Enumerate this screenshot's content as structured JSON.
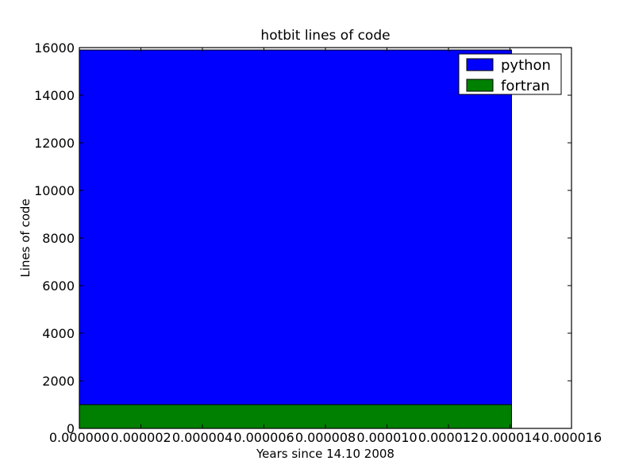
{
  "chart_data": {
    "type": "area",
    "title": "hotbit lines of code",
    "xlabel": "Years since 14.10 2008",
    "ylabel": "Lines of code",
    "xlim": [
      0,
      1.6e-05
    ],
    "ylim": [
      0,
      16000
    ],
    "x_ticks": [
      0,
      2e-06,
      4e-06,
      6e-06,
      8e-06,
      1e-05,
      1.2e-05,
      1.4e-05,
      1.6e-05
    ],
    "x_tick_labels": [
      "0.000000",
      "0.000002",
      "0.000004",
      "0.000006",
      "0.000008",
      "0.000010",
      "0.000012",
      "0.000014",
      "0.000016"
    ],
    "y_ticks": [
      0,
      2000,
      4000,
      6000,
      8000,
      10000,
      12000,
      14000,
      16000
    ],
    "y_tick_labels": [
      "0",
      "2000",
      "4000",
      "6000",
      "8000",
      "10000",
      "12000",
      "14000",
      "16000"
    ],
    "stacked": true,
    "x": [
      0,
      1.405e-05
    ],
    "series": [
      {
        "name": "fortran",
        "values": [
          1000,
          1000
        ],
        "color": "#008000"
      },
      {
        "name": "python",
        "values": [
          14900,
          14900
        ],
        "color": "#0000ff"
      }
    ],
    "legend": {
      "position": "top-right",
      "entries": [
        "python",
        "fortran"
      ]
    },
    "grid": false
  }
}
